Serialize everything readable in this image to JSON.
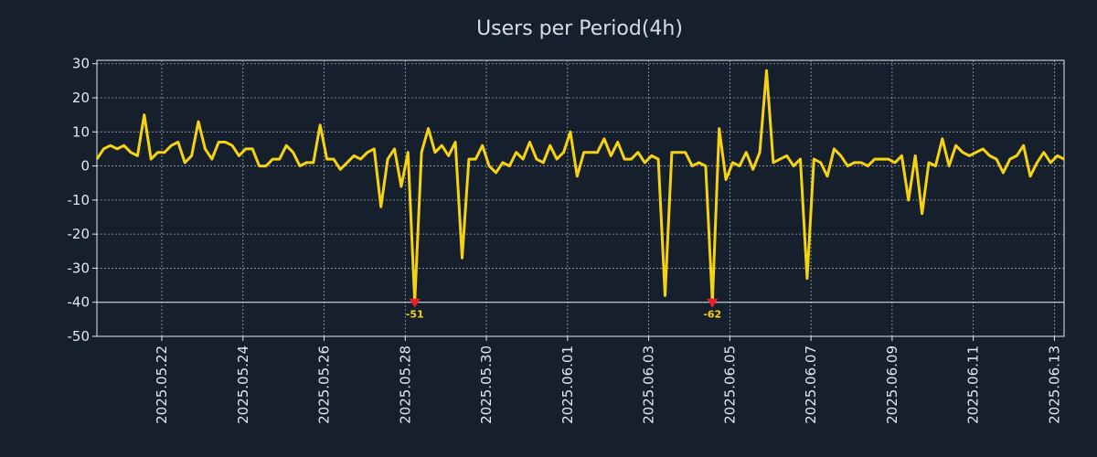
{
  "chart_data": {
    "type": "line",
    "title": "Users per Period(4h)",
    "xlabel": "",
    "ylabel": "",
    "ylim": [
      -50,
      31
    ],
    "yticks": [
      30,
      20,
      10,
      0,
      -10,
      -20,
      -30,
      -40,
      -50
    ],
    "x_tick_labels": [
      "2025.05.22",
      "2025.05.24",
      "2025.05.26",
      "2025.05.28",
      "2025.05.30",
      "2025.06.01",
      "2025.06.03",
      "2025.06.05",
      "2025.06.07",
      "2025.06.09",
      "2025.06.11",
      "2025.06.13"
    ],
    "x_tick_positions_days": [
      2,
      4,
      6,
      8,
      10,
      12,
      14,
      16,
      18,
      20,
      22,
      24
    ],
    "x_start_day": 0.4,
    "period_days": 0.1667,
    "clip_value": -40,
    "series": [
      {
        "name": "Users",
        "color": "#f5d312",
        "values": [
          2,
          5,
          6,
          5,
          6,
          4,
          3,
          15,
          2,
          4,
          4,
          6,
          7,
          1,
          3,
          13,
          5,
          2,
          7,
          7,
          6,
          3,
          5,
          5,
          0,
          0,
          2,
          2,
          6,
          4,
          0,
          1,
          1,
          12,
          2,
          2,
          -1,
          1,
          3,
          2,
          4,
          5,
          -12,
          2,
          5,
          -6,
          4,
          -51,
          4,
          11,
          4,
          6,
          3,
          7,
          -27,
          2,
          2,
          6,
          0,
          -2,
          1,
          0,
          4,
          2,
          7,
          2,
          1,
          6,
          2,
          4,
          10,
          -3,
          4,
          4,
          4,
          8,
          3,
          7,
          2,
          2,
          4,
          1,
          3,
          2,
          -38,
          4,
          4,
          4,
          0,
          1,
          0,
          -62,
          11,
          -4,
          1,
          0,
          4,
          -1,
          4,
          28,
          1,
          2,
          3,
          0,
          2,
          -33,
          2,
          1,
          -3,
          5,
          3,
          0,
          1,
          1,
          0,
          2,
          2,
          2,
          1,
          3,
          -10,
          3,
          -14,
          1,
          0,
          8,
          0,
          6,
          4,
          3,
          4,
          5,
          3,
          2,
          -2,
          2,
          3,
          6,
          -3,
          1,
          4,
          1,
          3,
          2
        ]
      }
    ],
    "annotations": [
      {
        "index": 47,
        "text": "-51",
        "color": "#f5d312",
        "marker_color": "#e8202a"
      },
      {
        "index": 91,
        "text": "-62",
        "color": "#f5d312",
        "marker_color": "#e8202a"
      }
    ],
    "colors": {
      "background": "#16202c",
      "text": "#e4e7eb",
      "title": "#d8dde3",
      "grid": "#9aa3ad"
    }
  }
}
